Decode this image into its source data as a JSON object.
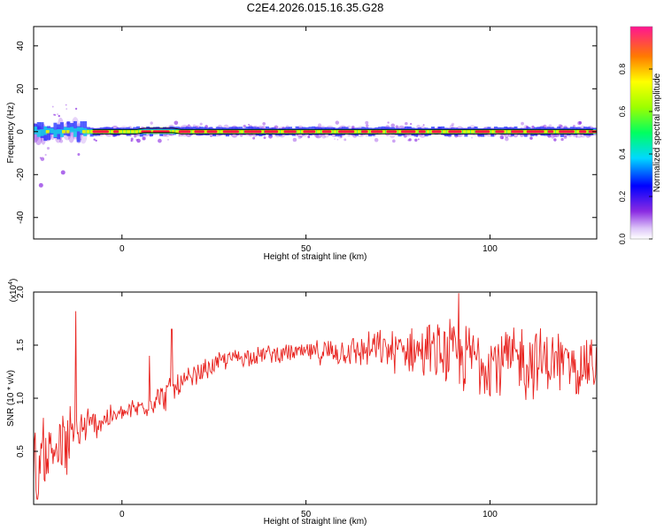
{
  "title": "C2E4.2026.015.16.35.G28",
  "chart_data": [
    {
      "type": "heatmap",
      "xlabel": "Height of straight line (km)",
      "ylabel": "Frequency (Hz)",
      "xlim": [
        -24,
        129
      ],
      "ylim": [
        -50,
        49
      ],
      "xticks": [
        "0",
        "50",
        "100"
      ],
      "xtick_values": [
        0,
        50,
        100
      ],
      "yticks": [
        "40",
        "20",
        "0",
        "-20",
        "-40"
      ],
      "ytick_values": [
        40,
        20,
        0,
        -20,
        -40
      ],
      "colorbar": {
        "label": "Normalized spectral amplitude",
        "range": [
          0,
          1
        ],
        "ticks": [
          "0.0",
          "0.2",
          "0.4",
          "0.6",
          "0.8"
        ],
        "tick_values": [
          0.0,
          0.2,
          0.4,
          0.6,
          0.8
        ]
      },
      "band": {
        "center_frequency": 0,
        "max_amplitude_x_ranges": [
          [
            -8,
            0
          ],
          [
            5,
            12
          ],
          [
            15,
            45
          ],
          [
            48,
            90
          ],
          [
            95,
            129
          ]
        ],
        "noisy_x_range": [
          -24,
          -10
        ],
        "outlier_points": [
          [
            -16,
            -19
          ],
          [
            -22,
            -25
          ]
        ]
      },
      "colors": {
        "low": "#8a2be2",
        "mid": "#00ff80",
        "high": "#ff1744"
      }
    },
    {
      "type": "line",
      "xlabel": "Height of straight line (km)",
      "ylabel": "SNR (10 * v/v)",
      "y_multiplier": "(x10",
      "y_multiplier_exp": "4",
      "y_multiplier_close": ")",
      "xlim": [
        -24,
        129
      ],
      "ylim": [
        0,
        2.0
      ],
      "xticks": [
        "0",
        "50",
        "100"
      ],
      "xtick_values": [
        0,
        50,
        100
      ],
      "yticks": [
        "2.0",
        "1.5",
        "1.0",
        "0.5"
      ],
      "ytick_values": [
        2.0,
        1.5,
        1.0,
        0.5
      ],
      "series": [
        {
          "color": "#e8231f",
          "envelope_x": [
            -24,
            -15,
            -10,
            -5,
            0,
            5,
            10,
            15,
            20,
            25,
            30,
            40,
            50,
            60,
            70,
            80,
            90,
            100,
            110,
            120,
            129
          ],
          "envelope_mean": [
            0.45,
            0.55,
            0.72,
            0.8,
            0.85,
            0.92,
            1.0,
            1.1,
            1.2,
            1.32,
            1.38,
            1.42,
            1.43,
            1.44,
            1.46,
            1.45,
            1.4,
            1.37,
            1.35,
            1.33,
            1.3
          ],
          "envelope_spread": [
            0.28,
            0.32,
            0.18,
            0.1,
            0.08,
            0.1,
            0.12,
            0.12,
            0.1,
            0.08,
            0.08,
            0.07,
            0.08,
            0.12,
            0.15,
            0.2,
            0.28,
            0.32,
            0.3,
            0.25,
            0.22
          ],
          "spikes": [
            [
              -12.5,
              1.82
            ],
            [
              13.5,
              1.65
            ],
            [
              7.5,
              1.4
            ],
            [
              91.5,
              2.0
            ],
            [
              -23,
              0.05
            ]
          ]
        }
      ]
    }
  ]
}
